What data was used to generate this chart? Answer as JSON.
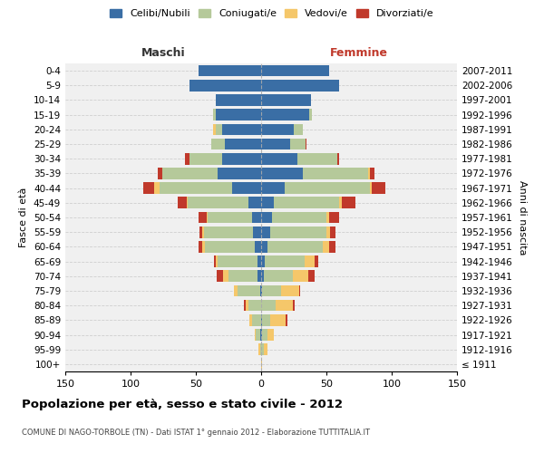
{
  "age_groups": [
    "100+",
    "95-99",
    "90-94",
    "85-89",
    "80-84",
    "75-79",
    "70-74",
    "65-69",
    "60-64",
    "55-59",
    "50-54",
    "45-49",
    "40-44",
    "35-39",
    "30-34",
    "25-29",
    "20-24",
    "15-19",
    "10-14",
    "5-9",
    "0-4"
  ],
  "birth_years": [
    "≤ 1911",
    "1912-1916",
    "1917-1921",
    "1922-1926",
    "1927-1931",
    "1932-1936",
    "1937-1941",
    "1942-1946",
    "1947-1951",
    "1952-1956",
    "1957-1961",
    "1962-1966",
    "1967-1971",
    "1972-1976",
    "1977-1981",
    "1982-1986",
    "1987-1991",
    "1992-1996",
    "1997-2001",
    "2002-2006",
    "2007-2011"
  ],
  "males": {
    "celibi": [
      0,
      0,
      1,
      0,
      0,
      1,
      3,
      3,
      5,
      6,
      7,
      10,
      22,
      33,
      30,
      28,
      30,
      35,
      35,
      55,
      48
    ],
    "coniugati": [
      0,
      1,
      3,
      7,
      10,
      17,
      22,
      30,
      38,
      38,
      34,
      46,
      56,
      43,
      25,
      10,
      5,
      2,
      0,
      0,
      0
    ],
    "vedovi": [
      0,
      1,
      1,
      2,
      2,
      3,
      4,
      2,
      2,
      1,
      1,
      1,
      4,
      0,
      0,
      0,
      2,
      0,
      0,
      0,
      0
    ],
    "divorziati": [
      0,
      0,
      0,
      0,
      1,
      0,
      5,
      1,
      3,
      2,
      6,
      7,
      8,
      3,
      3,
      0,
      0,
      0,
      0,
      0,
      0
    ]
  },
  "females": {
    "nubili": [
      0,
      0,
      1,
      1,
      0,
      1,
      2,
      3,
      5,
      7,
      8,
      10,
      18,
      32,
      28,
      22,
      25,
      37,
      38,
      60,
      52
    ],
    "coniugate": [
      0,
      2,
      4,
      6,
      11,
      14,
      22,
      30,
      42,
      43,
      42,
      50,
      65,
      50,
      30,
      12,
      7,
      2,
      0,
      0,
      0
    ],
    "vedove": [
      1,
      3,
      5,
      12,
      13,
      14,
      12,
      8,
      5,
      3,
      2,
      2,
      2,
      1,
      0,
      0,
      0,
      0,
      0,
      0,
      0
    ],
    "divorziate": [
      0,
      0,
      0,
      1,
      2,
      1,
      5,
      3,
      5,
      4,
      8,
      10,
      10,
      4,
      2,
      1,
      0,
      0,
      0,
      0,
      0
    ]
  },
  "colors": {
    "celibi": "#3a6ea5",
    "coniugati": "#b5c99a",
    "vedovi": "#f5c76a",
    "divorziati": "#c0392b"
  },
  "xlim": 150,
  "title": "Popolazione per età, sesso e stato civile - 2012",
  "subtitle": "COMUNE DI NAGO-TORBOLE (TN) - Dati ISTAT 1° gennaio 2012 - Elaborazione TUTTITALIA.IT",
  "xlabel_left": "Maschi",
  "xlabel_right": "Femmine",
  "ylabel_left": "Fasce di età",
  "ylabel_right": "Anni di nascita",
  "legend_labels": [
    "Celibi/Nubili",
    "Coniugati/e",
    "Vedovi/e",
    "Divorziati/e"
  ],
  "bg_color": "#f0f0f0",
  "grid_color": "#cccccc"
}
